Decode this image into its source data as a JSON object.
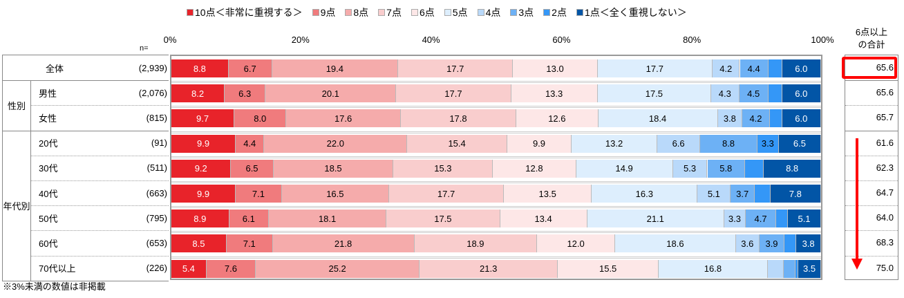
{
  "chart_data": {
    "type": "bar",
    "orientation": "horizontal",
    "stacked": true,
    "legend": [
      "10点＜非常に重視する＞",
      "9点",
      "8点",
      "7点",
      "6点",
      "5点",
      "4点",
      "3点",
      "2点",
      "1点＜全く重視しない＞"
    ],
    "colors": [
      "#e8232a",
      "#f07b7d",
      "#f5abab",
      "#f9cdcd",
      "#fde7e7",
      "#ddeefd",
      "#b9d9fa",
      "#6db1f5",
      "#3497f7",
      "#0255a6"
    ],
    "xticks": [
      "0%",
      "20%",
      "40%",
      "60%",
      "80%",
      "100%"
    ],
    "xlim": [
      0,
      100
    ],
    "n_label": "n=",
    "sum_header": [
      "6点以上",
      "の合計"
    ],
    "groups": [
      {
        "label": "",
        "rows": [
          0
        ]
      },
      {
        "label": "性別",
        "rows": [
          1,
          2
        ]
      },
      {
        "label": "年代別",
        "rows": [
          3,
          4,
          5,
          6,
          7,
          8
        ]
      }
    ],
    "rows": [
      {
        "label": "全体",
        "n": "(2,939)",
        "values": [
          8.8,
          6.7,
          19.4,
          17.7,
          13.0,
          17.7,
          4.2,
          4.4,
          2.1,
          6.0
        ],
        "sum": "65.6"
      },
      {
        "label": "男性",
        "n": "(2,076)",
        "values": [
          8.2,
          6.3,
          20.1,
          17.7,
          13.3,
          17.5,
          4.3,
          4.5,
          2.1,
          6.0
        ],
        "sum": "65.6"
      },
      {
        "label": "女性",
        "n": "(815)",
        "values": [
          9.7,
          8.0,
          17.6,
          17.8,
          12.6,
          18.4,
          3.8,
          4.2,
          1.9,
          6.0
        ],
        "sum": "65.7"
      },
      {
        "label": "20代",
        "n": "(91)",
        "values": [
          9.9,
          4.4,
          22.0,
          15.4,
          9.9,
          13.2,
          6.6,
          8.8,
          3.3,
          6.5
        ],
        "sum": "61.6"
      },
      {
        "label": "30代",
        "n": "(511)",
        "values": [
          9.2,
          6.5,
          18.5,
          15.3,
          12.8,
          14.9,
          5.3,
          5.8,
          2.9,
          8.8
        ],
        "sum": "62.3"
      },
      {
        "label": "40代",
        "n": "(663)",
        "values": [
          9.9,
          7.1,
          16.5,
          17.7,
          13.5,
          16.3,
          5.1,
          3.7,
          2.4,
          7.8
        ],
        "sum": "64.7"
      },
      {
        "label": "50代",
        "n": "(795)",
        "values": [
          8.9,
          6.1,
          18.1,
          17.5,
          13.4,
          21.1,
          3.3,
          4.7,
          1.8,
          5.1
        ],
        "sum": "64.0"
      },
      {
        "label": "60代",
        "n": "(653)",
        "values": [
          8.5,
          7.1,
          21.8,
          18.9,
          12.0,
          18.6,
          3.6,
          3.9,
          1.8,
          3.8
        ],
        "sum": "68.3"
      },
      {
        "label": "70代以上",
        "n": "(226)",
        "values": [
          5.4,
          7.6,
          25.2,
          21.3,
          15.5,
          16.8,
          2.5,
          1.8,
          0.4,
          3.5
        ],
        "sum": "75.0"
      }
    ],
    "label_threshold": 3,
    "note": "※3%未満の数値は非掲載"
  }
}
